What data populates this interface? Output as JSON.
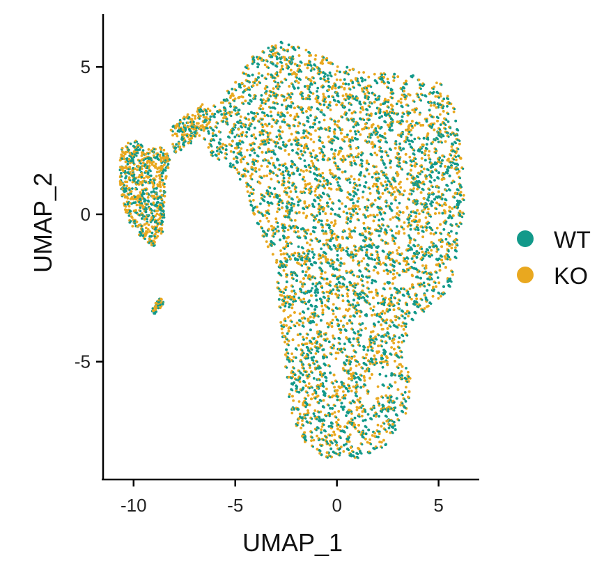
{
  "chart_data": {
    "type": "scatter",
    "xlabel": "UMAP_1",
    "ylabel": "UMAP_2",
    "xlim": [
      -11.5,
      7
    ],
    "ylim": [
      -9,
      6.8
    ],
    "x_ticks": [
      -10,
      -5,
      0,
      5
    ],
    "x_tick_labels": [
      "-10",
      "-5",
      "0",
      "5"
    ],
    "y_ticks": [
      -5,
      0,
      5
    ],
    "y_tick_labels": [
      "-5",
      "0",
      "5"
    ],
    "grid": false,
    "legend_position": "right",
    "series": [
      {
        "name": "WT",
        "color": "#12998a"
      },
      {
        "name": "KO",
        "color": "#e9a81f"
      }
    ],
    "point_regions": {
      "main_body": [
        [
          -6.2,
          3.6
        ],
        [
          -5.0,
          4.5
        ],
        [
          -4.5,
          5.2
        ],
        [
          -3.5,
          5.7
        ],
        [
          -2.5,
          5.9
        ],
        [
          -1.5,
          5.6
        ],
        [
          0.5,
          5.0
        ],
        [
          2.0,
          4.8
        ],
        [
          4.0,
          4.7
        ],
        [
          5.2,
          4.4
        ],
        [
          5.8,
          3.5
        ],
        [
          6.1,
          2.2
        ],
        [
          6.3,
          0.5
        ],
        [
          6.0,
          -1.0
        ],
        [
          5.6,
          -2.5
        ],
        [
          4.5,
          -3.2
        ],
        [
          3.5,
          -3.8
        ],
        [
          3.3,
          -4.7
        ],
        [
          3.7,
          -5.7
        ],
        [
          3.5,
          -6.8
        ],
        [
          2.5,
          -7.8
        ],
        [
          0.8,
          -8.3
        ],
        [
          -0.5,
          -8.3
        ],
        [
          -1.5,
          -7.8
        ],
        [
          -2.2,
          -7.0
        ],
        [
          -2.5,
          -5.5
        ],
        [
          -2.8,
          -3.5
        ],
        [
          -3.0,
          -2.0
        ],
        [
          -3.5,
          -1.0
        ],
        [
          -4.2,
          0.2
        ],
        [
          -5.0,
          1.5
        ],
        [
          -6.2,
          2.0
        ],
        [
          -6.8,
          2.8
        ]
      ],
      "bridge": [
        [
          -8.2,
          3.0
        ],
        [
          -7.3,
          3.4
        ],
        [
          -6.5,
          3.8
        ],
        [
          -6.0,
          3.3
        ],
        [
          -6.8,
          2.6
        ],
        [
          -7.5,
          2.3
        ],
        [
          -8.0,
          2.0
        ]
      ],
      "left_lobe": [
        [
          -10.6,
          2.4
        ],
        [
          -10.0,
          2.6
        ],
        [
          -9.4,
          2.2
        ],
        [
          -8.6,
          2.3
        ],
        [
          -8.2,
          1.9
        ],
        [
          -8.4,
          1.2
        ],
        [
          -8.5,
          0.2
        ],
        [
          -8.6,
          -0.6
        ],
        [
          -9.0,
          -1.1
        ],
        [
          -9.6,
          -0.8
        ],
        [
          -10.2,
          -0.3
        ],
        [
          -10.6,
          0.5
        ],
        [
          -10.7,
          1.5
        ]
      ],
      "tiny_cluster": [
        [
          -9.2,
          -3.3
        ],
        [
          -8.7,
          -2.8
        ],
        [
          -8.5,
          -3.0
        ],
        [
          -8.9,
          -3.4
        ]
      ]
    },
    "point_count": 30000
  },
  "legend": {
    "items": [
      {
        "label": "WT",
        "color": "#12998a"
      },
      {
        "label": "KO",
        "color": "#e9a81f"
      }
    ]
  }
}
